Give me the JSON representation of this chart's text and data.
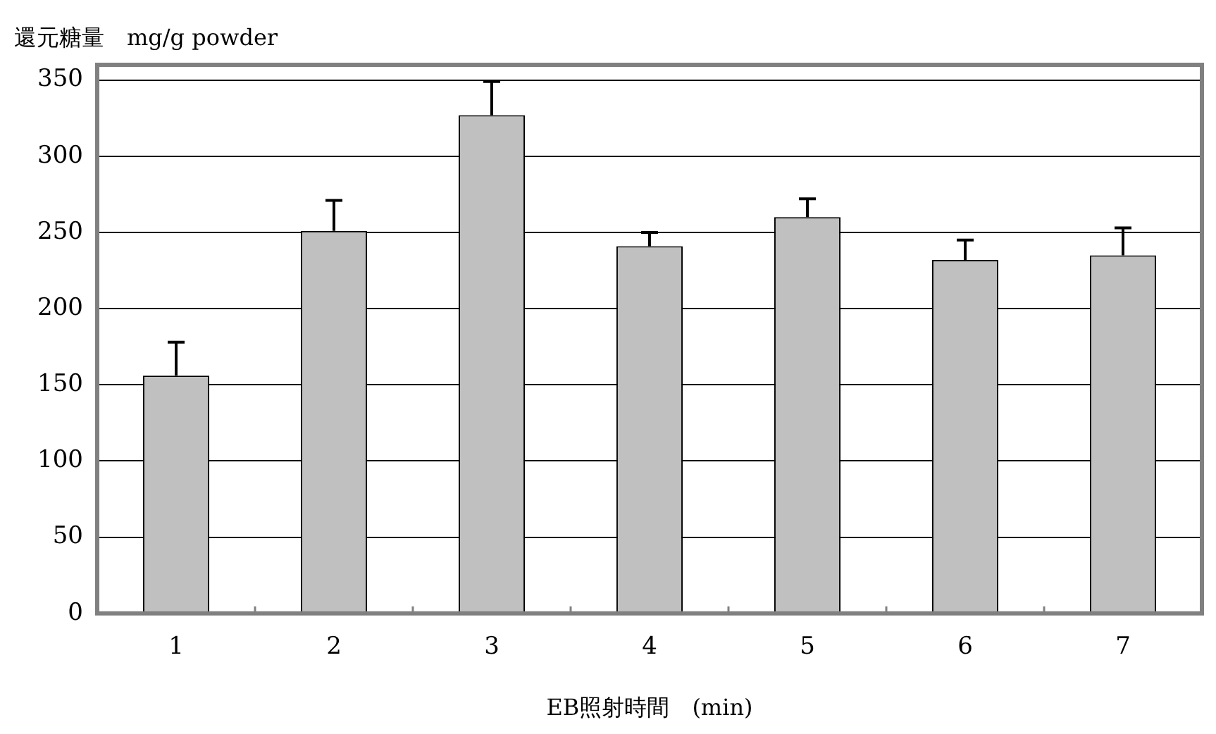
{
  "chart_data": {
    "type": "bar",
    "ylabel": "還元糖量　mg/g powder",
    "xlabel": "EB照射時間　(min)",
    "categories": [
      "1",
      "2",
      "3",
      "4",
      "5",
      "6",
      "7"
    ],
    "values": [
      156,
      251,
      327,
      241,
      260,
      232,
      235
    ],
    "errors": [
      [
        156,
        178
      ],
      [
        251,
        271
      ],
      [
        327,
        349
      ],
      [
        241,
        250
      ],
      [
        260,
        272
      ],
      [
        232,
        245
      ],
      [
        235,
        253
      ]
    ],
    "color": "#c0c0c0",
    "ylim": [
      0,
      360
    ],
    "yticks": [
      0,
      50,
      100,
      150,
      200,
      250,
      300,
      350
    ],
    "grid": "y"
  }
}
